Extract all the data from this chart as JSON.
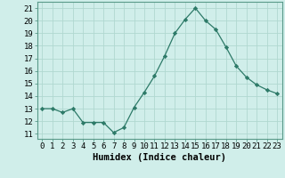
{
  "x": [
    0,
    1,
    2,
    3,
    4,
    5,
    6,
    7,
    8,
    9,
    10,
    11,
    12,
    13,
    14,
    15,
    16,
    17,
    18,
    19,
    20,
    21,
    22,
    23
  ],
  "y": [
    13.0,
    13.0,
    12.7,
    13.0,
    11.9,
    11.9,
    11.9,
    11.1,
    11.5,
    13.1,
    14.3,
    15.6,
    17.2,
    19.0,
    20.1,
    21.0,
    20.0,
    19.3,
    17.9,
    16.4,
    15.5,
    14.9,
    14.5,
    14.2
  ],
  "line_color": "#2d7a68",
  "marker": "D",
  "marker_size": 2.2,
  "bg_color": "#d0eeea",
  "grid_color": "#b0d8d0",
  "xlabel": "Humidex (Indice chaleur)",
  "ylabel_ticks": [
    11,
    12,
    13,
    14,
    15,
    16,
    17,
    18,
    19,
    20,
    21
  ],
  "ylim": [
    10.6,
    21.5
  ],
  "xlim": [
    -0.5,
    23.5
  ],
  "tick_fontsize": 6.5,
  "xlabel_fontsize": 7.5,
  "linewidth": 0.9
}
